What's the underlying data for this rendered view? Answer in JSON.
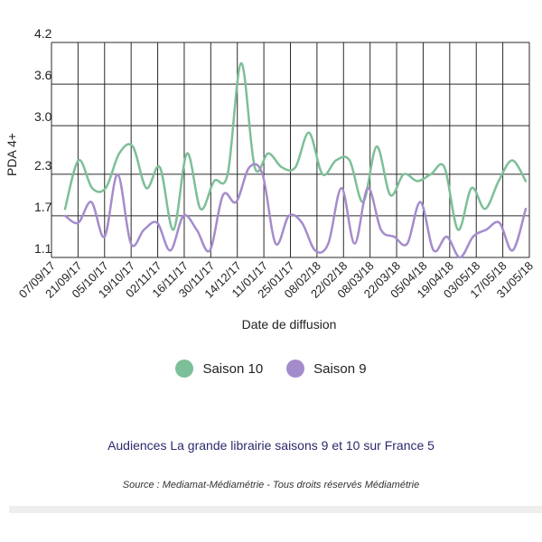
{
  "chart_data": {
    "type": "line",
    "title": "",
    "xlabel": "Date de diffusion",
    "ylabel": "PDA 4+",
    "yticks": [
      "1.1",
      "1.7",
      "2.3",
      "3.0",
      "3.6",
      "4.2"
    ],
    "ylim": [
      1.1,
      4.2
    ],
    "xticks": [
      "07/09/17",
      "21/09/17",
      "05/10/17",
      "19/10/17",
      "02/11/17",
      "16/11/17",
      "30/11/17",
      "14/12/17",
      "11/01/17",
      "25/01/17",
      "08/02/18",
      "22/02/18",
      "08/03/18",
      "22/03/18",
      "05/04/18",
      "19/04/18",
      "03/05/18",
      "17/05/18",
      "31/05/18"
    ],
    "grid": true,
    "legend_position": "bottom",
    "series": [
      {
        "name": "Saison 10",
        "color": "#7dbf98",
        "values": [
          1.8,
          2.5,
          2.1,
          2.1,
          2.6,
          2.7,
          2.1,
          2.4,
          1.5,
          2.6,
          1.8,
          2.2,
          2.3,
          3.9,
          2.4,
          2.6,
          2.4,
          2.4,
          2.9,
          2.3,
          2.5,
          2.5,
          1.9,
          2.7,
          2.0,
          2.3,
          2.2,
          2.3,
          2.4,
          1.5,
          2.1,
          1.8,
          2.2,
          2.5,
          2.2
        ]
      },
      {
        "name": "Saison 9",
        "color": "#a48ccc",
        "values": [
          1.7,
          1.6,
          1.9,
          1.4,
          2.3,
          1.3,
          1.5,
          1.6,
          1.2,
          1.7,
          1.5,
          1.2,
          2.0,
          1.9,
          2.4,
          2.3,
          1.3,
          1.7,
          1.6,
          1.2,
          1.3,
          2.1,
          1.3,
          2.1,
          1.5,
          1.4,
          1.3,
          1.9,
          1.2,
          1.4,
          1.1,
          1.4,
          1.5,
          1.6,
          1.2,
          1.8
        ]
      }
    ]
  },
  "caption": "Audiences La grande librairie saisons 9 et 10 sur France 5",
  "source": "Source : Mediamat-Médiamétrie - Tous droits réservés Médiamétrie"
}
